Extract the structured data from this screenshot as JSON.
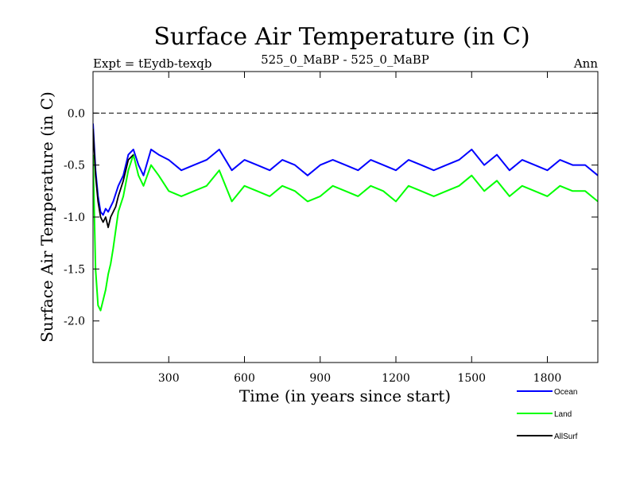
{
  "chart_data": {
    "type": "line",
    "title": "Surface Air Temperature (in C)",
    "subtitle_left": "Expt = tEydb-texqb",
    "subtitle_center": "525_0_MaBP - 525_0_MaBP",
    "subtitle_right": "Ann",
    "xlabel": "Time (in years since start)",
    "ylabel": "Surface Air Temperature (in C)",
    "xlim": [
      0,
      2000
    ],
    "ylim": [
      -2.4,
      0.4
    ],
    "x_ticks": [
      300,
      600,
      900,
      1200,
      1500,
      1800
    ],
    "x_tick_labels": [
      "300",
      "600",
      "900",
      "1200",
      "1500",
      "1800"
    ],
    "y_ticks": [
      0.0,
      -0.5,
      -1.0,
      -1.5,
      -2.0
    ],
    "y_tick_labels": [
      "0.0",
      "-0.5",
      "-1.0",
      "-1.5",
      "-2.0"
    ],
    "reference_line": {
      "y": 0.0,
      "style": "dashed"
    },
    "grid": false,
    "legend_position": "bottom-right",
    "series": [
      {
        "name": "Ocean",
        "color": "#0000ff",
        "x": [
          0,
          10,
          20,
          30,
          40,
          50,
          60,
          70,
          80,
          100,
          120,
          140,
          160,
          180,
          200,
          230,
          260,
          300,
          350,
          400,
          450,
          500,
          550,
          600,
          650,
          700,
          750,
          800,
          850,
          900,
          950,
          1000,
          1050,
          1100,
          1150,
          1200,
          1250,
          1300,
          1350,
          1400,
          1450,
          1500,
          1550,
          1600,
          1650,
          1700,
          1750,
          1800,
          1850,
          1900,
          1950,
          2000
        ],
        "values": [
          -0.1,
          -0.55,
          -0.8,
          -0.95,
          -0.98,
          -0.92,
          -0.95,
          -0.9,
          -0.85,
          -0.7,
          -0.6,
          -0.4,
          -0.35,
          -0.5,
          -0.6,
          -0.35,
          -0.4,
          -0.45,
          -0.55,
          -0.5,
          -0.45,
          -0.35,
          -0.55,
          -0.45,
          -0.5,
          -0.55,
          -0.45,
          -0.5,
          -0.6,
          -0.5,
          -0.45,
          -0.5,
          -0.55,
          -0.45,
          -0.5,
          -0.55,
          -0.45,
          -0.5,
          -0.55,
          -0.5,
          -0.45,
          -0.35,
          -0.5,
          -0.4,
          -0.55,
          -0.45,
          -0.5,
          -0.55,
          -0.45,
          -0.5,
          -0.5,
          -0.6
        ]
      },
      {
        "name": "Land",
        "color": "#00ff00",
        "x": [
          0,
          10,
          20,
          30,
          40,
          50,
          60,
          70,
          80,
          100,
          120,
          140,
          160,
          180,
          200,
          230,
          260,
          300,
          350,
          400,
          450,
          500,
          550,
          600,
          650,
          700,
          750,
          800,
          850,
          900,
          950,
          1000,
          1050,
          1100,
          1150,
          1200,
          1250,
          1300,
          1350,
          1400,
          1450,
          1500,
          1550,
          1600,
          1650,
          1700,
          1750,
          1800,
          1850,
          1900,
          1950,
          2000
        ],
        "values": [
          -0.4,
          -1.5,
          -1.85,
          -1.9,
          -1.8,
          -1.7,
          -1.55,
          -1.45,
          -1.3,
          -0.95,
          -0.8,
          -0.55,
          -0.4,
          -0.6,
          -0.7,
          -0.5,
          -0.6,
          -0.75,
          -0.8,
          -0.75,
          -0.7,
          -0.55,
          -0.85,
          -0.7,
          -0.75,
          -0.8,
          -0.7,
          -0.75,
          -0.85,
          -0.8,
          -0.7,
          -0.75,
          -0.8,
          -0.7,
          -0.75,
          -0.85,
          -0.7,
          -0.75,
          -0.8,
          -0.75,
          -0.7,
          -0.6,
          -0.75,
          -0.65,
          -0.8,
          -0.7,
          -0.75,
          -0.8,
          -0.7,
          -0.75,
          -0.75,
          -0.85
        ]
      },
      {
        "name": "AllSurf",
        "color": "#000000",
        "x": [
          0,
          10,
          20,
          30,
          40,
          50,
          60,
          70,
          80,
          90,
          100,
          120,
          140,
          160
        ],
        "values": [
          -0.15,
          -0.6,
          -0.85,
          -1.0,
          -1.05,
          -1.0,
          -1.1,
          -1.0,
          -0.95,
          -0.9,
          -0.8,
          -0.65,
          -0.45,
          -0.4
        ]
      }
    ]
  }
}
